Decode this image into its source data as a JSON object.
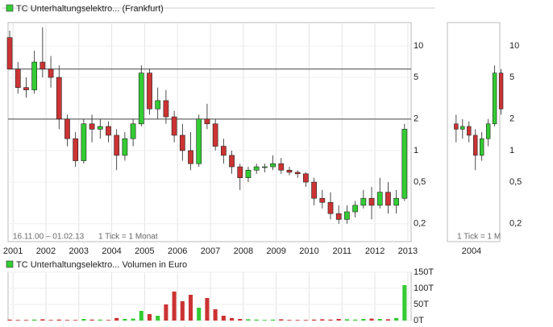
{
  "chart_data": [
    {
      "type": "candlestick",
      "title": "TC Unterhaltungselektro... (Frankfurt)",
      "period": "16.11.00 – 01.02.13",
      "note": "1 Tick = 1 Monat",
      "x": [
        2000.9,
        2001.15,
        2001.4,
        2001.65,
        2001.9,
        2002.15,
        2002.4,
        2002.65,
        2002.9,
        2003.15,
        2003.4,
        2003.65,
        2003.9,
        2004.15,
        2004.4,
        2004.65,
        2004.9,
        2005.15,
        2005.4,
        2005.65,
        2005.9,
        2006.15,
        2006.4,
        2006.65,
        2006.9,
        2007.15,
        2007.4,
        2007.65,
        2007.9,
        2008.15,
        2008.4,
        2008.65,
        2008.9,
        2009.15,
        2009.4,
        2009.65,
        2009.9,
        2010.15,
        2010.4,
        2010.65,
        2010.9,
        2011.15,
        2011.4,
        2011.65,
        2011.9,
        2012.15,
        2012.4,
        2012.65,
        2012.9
      ],
      "open": [
        12,
        6,
        4,
        3.8,
        7,
        6,
        5,
        2,
        1.3,
        0.8,
        1.8,
        1.6,
        1.7,
        1.4,
        0.9,
        1.3,
        1.8,
        5.5,
        2.5,
        3,
        2.1,
        1.4,
        1,
        0.75,
        2,
        1.8,
        1.1,
        0.9,
        0.7,
        0.55,
        0.65,
        0.7,
        0.7,
        0.75,
        0.65,
        0.62,
        0.6,
        0.5,
        0.35,
        0.32,
        0.25,
        0.22,
        0.26,
        0.3,
        0.35,
        0.3,
        0.4,
        0.3,
        0.35
      ],
      "high": [
        14,
        7,
        5,
        9,
        15,
        8,
        6.5,
        2.2,
        1.5,
        2,
        2.2,
        2,
        1.9,
        1.6,
        1.5,
        2,
        6.5,
        6,
        4,
        3.8,
        2.4,
        1.8,
        1.5,
        2.2,
        2.8,
        2,
        1.3,
        1,
        0.75,
        0.7,
        0.75,
        0.75,
        0.9,
        0.85,
        0.7,
        0.65,
        0.62,
        0.55,
        0.42,
        0.4,
        0.3,
        0.3,
        0.33,
        0.42,
        0.45,
        0.55,
        0.5,
        0.42,
        1.8
      ],
      "low": [
        6,
        3.5,
        3.2,
        3.5,
        5,
        4,
        1.6,
        1.1,
        0.7,
        0.75,
        1.2,
        1.3,
        1.2,
        0.65,
        0.8,
        1.1,
        1.7,
        2.2,
        2,
        1.8,
        1.2,
        0.8,
        0.65,
        0.7,
        1.6,
        1,
        0.75,
        0.6,
        0.42,
        0.5,
        0.6,
        0.62,
        0.65,
        0.6,
        0.58,
        0.55,
        0.45,
        0.3,
        0.28,
        0.22,
        0.2,
        0.2,
        0.23,
        0.28,
        0.22,
        0.28,
        0.25,
        0.25,
        0.33
      ],
      "close": [
        6,
        4,
        3.8,
        7,
        6,
        5,
        2,
        1.3,
        0.8,
        1.8,
        1.6,
        1.7,
        1.4,
        0.9,
        1.3,
        1.8,
        5.5,
        2.5,
        3,
        2.1,
        1.4,
        1,
        0.75,
        2,
        1.8,
        1.1,
        0.9,
        0.7,
        0.55,
        0.65,
        0.7,
        0.7,
        0.75,
        0.65,
        0.62,
        0.6,
        0.5,
        0.35,
        0.32,
        0.25,
        0.22,
        0.26,
        0.3,
        0.35,
        0.3,
        0.4,
        0.3,
        0.35,
        1.6
      ],
      "up_color": "#33cc33",
      "down_color": "#cc3333",
      "log_scale": true,
      "ylim": [
        0.135,
        16.7
      ],
      "yticks": [
        10,
        5,
        2,
        1,
        {
          "value": 0.5,
          "label": "0,5"
        },
        {
          "value": 0.2,
          "label": "0,2"
        }
      ],
      "xlim": [
        2000.85,
        2013.1
      ],
      "xticks": [
        2001,
        2002,
        2003,
        2004,
        2005,
        2006,
        2007,
        2008,
        2009,
        2010,
        2011,
        2012,
        2013
      ],
      "hlines": [
        6,
        2
      ],
      "grid": true
    },
    {
      "type": "bar",
      "title": "TC Unterhaltungselektro... Volumen in Euro",
      "values": [
        3,
        2,
        2,
        3,
        4,
        2,
        3,
        2,
        2,
        5,
        3,
        3,
        2,
        8,
        5,
        6,
        30,
        20,
        15,
        50,
        90,
        60,
        80,
        40,
        70,
        35,
        15,
        8,
        5,
        4,
        3,
        2,
        3,
        4,
        2,
        2,
        2,
        3,
        4,
        3,
        5,
        4,
        3,
        5,
        6,
        5,
        4,
        8,
        110
      ],
      "ylim": [
        0,
        150
      ],
      "yticks": [
        {
          "value": 0,
          "label": "0T"
        },
        {
          "value": 50,
          "label": "50T"
        },
        {
          "value": 100,
          "label": "100T"
        },
        {
          "value": 150,
          "label": "150T"
        }
      ]
    },
    {
      "type": "candlestick",
      "note": "1 Tick = 1 M",
      "x": [
        2003.4,
        2003.65,
        2003.9,
        2004.15,
        2004.4,
        2004.65,
        2004.9,
        2005.15
      ],
      "open": [
        1.8,
        1.6,
        1.7,
        1.4,
        0.9,
        1.3,
        1.8,
        5.5
      ],
      "high": [
        2.2,
        2,
        1.9,
        1.6,
        1.5,
        2,
        6.5,
        6
      ],
      "low": [
        1.2,
        1.3,
        1.2,
        0.65,
        0.8,
        1.1,
        1.7,
        2.2
      ],
      "close": [
        1.6,
        1.7,
        1.4,
        0.9,
        1.3,
        1.8,
        5.5,
        2.5
      ],
      "up_color": "#33cc33",
      "down_color": "#cc3333",
      "log_scale": true,
      "ylim": [
        0.135,
        16.7
      ],
      "yticks": [
        10,
        5,
        2,
        1,
        {
          "value": 0.5,
          "label": "0,5"
        },
        {
          "value": 0.2,
          "label": "0,2"
        }
      ],
      "xlim": [
        2003.06,
        2005.1
      ],
      "xticks": [
        2004
      ]
    }
  ]
}
